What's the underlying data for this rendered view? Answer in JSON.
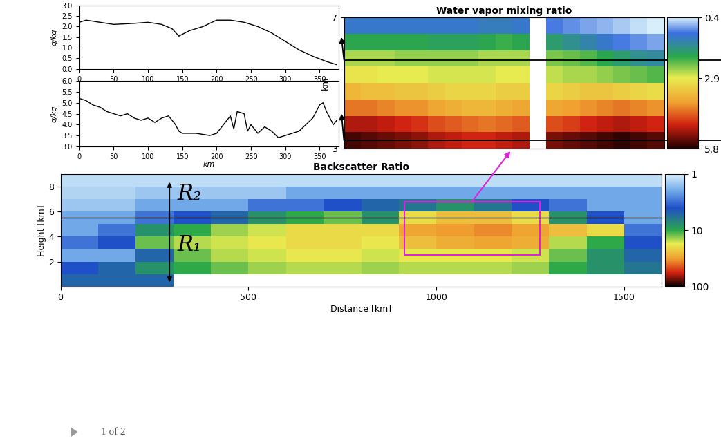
{
  "chart_data": [
    {
      "type": "line",
      "ylabel": "g/kg",
      "color": "#000000",
      "x": [
        0,
        10,
        30,
        50,
        80,
        100,
        120,
        135,
        145,
        160,
        180,
        200,
        220,
        240,
        260,
        280,
        300,
        320,
        340,
        360,
        375
      ],
      "values": [
        2.2,
        2.3,
        2.2,
        2.1,
        2.15,
        2.2,
        2.1,
        1.9,
        1.55,
        1.8,
        2.0,
        2.3,
        2.3,
        2.2,
        2.0,
        1.7,
        1.3,
        0.9,
        0.6,
        0.35,
        0.2
      ],
      "xlim": [
        0,
        378
      ],
      "xticks": [
        0,
        50,
        100,
        150,
        200,
        250,
        300,
        350
      ],
      "ylim": [
        0,
        3
      ],
      "yticks": [
        {
          "value": 0,
          "label": "0.0"
        },
        0.5,
        {
          "value": 1,
          "label": "1.0"
        },
        1.5,
        {
          "value": 2,
          "label": "2.0"
        },
        2.5,
        {
          "value": 3,
          "label": "3.0"
        }
      ],
      "grid": false
    },
    {
      "type": "line",
      "ylabel": "g/kg",
      "xlabel": "km",
      "color": "#000000",
      "x": [
        0,
        10,
        20,
        30,
        40,
        50,
        60,
        70,
        80,
        90,
        100,
        110,
        120,
        130,
        140,
        145,
        150,
        170,
        190,
        200,
        210,
        220,
        225,
        230,
        240,
        245,
        250,
        260,
        270,
        280,
        290,
        300,
        310,
        320,
        330,
        340,
        350,
        355,
        360,
        370,
        375
      ],
      "values": [
        5.2,
        5.1,
        4.9,
        4.8,
        4.6,
        4.5,
        4.4,
        4.5,
        4.3,
        4.2,
        4.3,
        4.1,
        4.3,
        4.4,
        4.0,
        3.7,
        3.6,
        3.6,
        3.5,
        3.6,
        4.0,
        4.4,
        3.8,
        4.6,
        4.5,
        3.7,
        4.0,
        3.6,
        3.9,
        3.7,
        3.4,
        3.5,
        3.6,
        3.7,
        4.0,
        4.3,
        4.9,
        5.0,
        4.6,
        4.0,
        4.2
      ],
      "xlim": [
        0,
        378
      ],
      "xticks": [
        0,
        50,
        100,
        150,
        200,
        250,
        300,
        350
      ],
      "ylim": [
        3,
        6
      ],
      "yticks": [
        {
          "value": 3,
          "label": "3.0"
        },
        3.5,
        {
          "value": 4,
          "label": "4.0"
        },
        4.5,
        {
          "value": 5,
          "label": "5.0"
        },
        5.5,
        {
          "value": 6,
          "label": "6.0"
        }
      ],
      "grid": false
    },
    {
      "type": "heatmap",
      "title": "Water vapor mixing ratio",
      "ylabel": "km",
      "tick_labels": "y",
      "xlim": [
        0,
        380
      ],
      "ylim": [
        3,
        7
      ],
      "yticks": [
        3,
        7
      ],
      "x": [
        10,
        30,
        50,
        70,
        90,
        110,
        130,
        150,
        170,
        190,
        210,
        230,
        250,
        270,
        290,
        310,
        330,
        350,
        370
      ],
      "y": [
        3.25,
        3.75,
        4.25,
        4.75,
        5.25,
        5.75,
        6.25,
        6.75
      ],
      "cells": [
        [
          5.6,
          5.5,
          5.4,
          5.3,
          5.2,
          5.0,
          4.9,
          4.8,
          4.8,
          4.9,
          5.0,
          null,
          5.3,
          5.4,
          5.5,
          5.6,
          5.7,
          5.6,
          5.5
        ],
        [
          5.0,
          5.0,
          4.9,
          4.8,
          4.7,
          4.5,
          4.4,
          4.3,
          4.2,
          4.3,
          4.4,
          null,
          4.5,
          4.6,
          4.8,
          4.9,
          5.0,
          4.9,
          4.8
        ],
        [
          4.2,
          4.2,
          4.1,
          4.0,
          4.0,
          3.8,
          3.7,
          3.6,
          3.6,
          3.7,
          3.8,
          null,
          3.8,
          3.9,
          4.0,
          4.1,
          4.2,
          4.1,
          4.0
        ],
        [
          3.6,
          3.5,
          3.5,
          3.4,
          3.4,
          3.3,
          3.2,
          3.2,
          3.2,
          3.3,
          3.3,
          null,
          3.2,
          3.3,
          3.4,
          3.4,
          3.3,
          3.2,
          3.1
        ],
        [
          3.0,
          3.0,
          2.9,
          2.9,
          2.9,
          2.8,
          2.8,
          2.8,
          2.8,
          2.9,
          2.9,
          null,
          2.7,
          2.6,
          2.6,
          2.5,
          2.4,
          2.3,
          2.2
        ],
        [
          2.6,
          2.6,
          2.6,
          2.5,
          2.5,
          2.5,
          2.5,
          2.5,
          2.6,
          2.6,
          2.6,
          null,
          2.4,
          2.3,
          2.2,
          2.0,
          1.8,
          1.6,
          1.5
        ],
        [
          2.0,
          2.0,
          2.0,
          2.0,
          2.0,
          1.9,
          1.9,
          1.9,
          2.0,
          2.1,
          2.0,
          null,
          1.8,
          1.6,
          1.4,
          1.2,
          1.0,
          0.9,
          0.8
        ],
        [
          1.2,
          1.2,
          1.2,
          1.2,
          1.2,
          1.2,
          1.2,
          1.2,
          1.3,
          1.3,
          1.2,
          null,
          1.0,
          0.9,
          0.8,
          0.7,
          0.6,
          0.5,
          0.4
        ]
      ],
      "colorbar": {
        "range": [
          0.4,
          5.8
        ],
        "ticks": [
          0.4,
          2.9,
          5.8
        ]
      },
      "profile_heights": [
        5.7,
        3.25
      ]
    },
    {
      "type": "heatmap",
      "title": "Backscatter Ratio",
      "xlabel": "Distance [km]",
      "ylabel": "Height [km]",
      "xlim": [
        0,
        1600
      ],
      "xticks": [
        0,
        500,
        1000,
        1500
      ],
      "ylim": [
        0,
        9
      ],
      "yticks": [
        2,
        4,
        6,
        8
      ],
      "x": [
        50,
        150,
        250,
        350,
        450,
        550,
        650,
        750,
        850,
        950,
        1050,
        1150,
        1250,
        1350,
        1450,
        1550
      ],
      "y": [
        0.5,
        1.5,
        2.5,
        3.5,
        4.5,
        5.5,
        6.5,
        7.5,
        8.5
      ],
      "cells": [
        [
          5,
          5,
          5,
          null,
          null,
          null,
          null,
          null,
          null,
          null,
          null,
          null,
          null,
          null,
          null,
          null
        ],
        [
          4,
          5,
          8,
          10,
          12,
          14,
          15,
          15,
          14,
          15,
          15,
          15,
          14,
          10,
          8,
          6
        ],
        [
          2,
          2,
          5,
          12,
          15,
          16,
          18,
          18,
          16,
          18,
          18,
          18,
          16,
          12,
          8,
          5
        ],
        [
          3,
          4,
          12,
          15,
          16,
          18,
          20,
          20,
          18,
          25,
          28,
          30,
          28,
          15,
          10,
          4
        ],
        [
          2,
          3,
          8,
          10,
          14,
          16,
          20,
          20,
          20,
          30,
          32,
          35,
          30,
          25,
          20,
          3
        ],
        [
          2,
          2,
          3,
          4,
          5,
          8,
          10,
          12,
          8,
          20,
          25,
          25,
          20,
          8,
          4,
          2
        ],
        [
          1.5,
          1.5,
          2,
          2,
          2,
          3,
          3,
          4,
          5,
          6,
          8,
          6,
          4,
          3,
          2,
          2
        ],
        [
          1.3,
          1.3,
          1.5,
          1.5,
          1.5,
          1.5,
          2,
          2,
          2,
          2,
          2,
          2,
          2,
          2,
          2,
          2
        ],
        [
          1.2,
          1.2,
          1.2,
          1.2,
          1.2,
          1.2,
          1.2,
          1.2,
          1.2,
          1.2,
          1.2,
          1.2,
          1.2,
          1.2,
          1.2,
          1.2
        ]
      ],
      "colorbar": {
        "range": [
          1,
          100
        ],
        "ticks": [
          1,
          10,
          100
        ],
        "log": true
      },
      "reference_height": 5.5,
      "highlight": {
        "x": [
          915,
          1275
        ],
        "y": [
          2.5,
          6.8
        ],
        "color": "#e020e0"
      },
      "range_arrow": {
        "x": 290,
        "y": [
          0.2,
          8.5
        ]
      },
      "annotations": [
        {
          "text": "R₂",
          "x": 310,
          "y": 7.4
        },
        {
          "text": "R₁",
          "x": 310,
          "y": 3.3
        }
      ]
    }
  ],
  "footer": "1 of 2"
}
